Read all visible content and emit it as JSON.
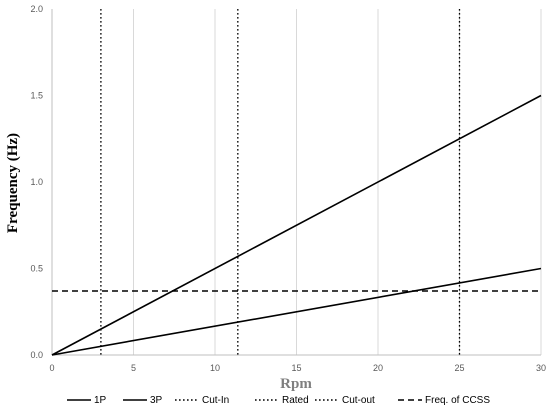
{
  "chart_data": {
    "type": "line",
    "xlabel": "Rpm",
    "ylabel": "Frequency (Hz)",
    "xlim": [
      0,
      30
    ],
    "ylim": [
      0,
      2.0
    ],
    "xticks": [
      "0",
      "5",
      "10",
      "15",
      "20",
      "25",
      "30"
    ],
    "yticks": [
      "0.0",
      "0.5",
      "1.0",
      "1.5",
      "2.0"
    ],
    "grid": "vertical",
    "legend_position": "bottom",
    "series": [
      {
        "name": "1P",
        "style": "solid",
        "points": [
          [
            0,
            0
          ],
          [
            30,
            0.5
          ]
        ]
      },
      {
        "name": "3P",
        "style": "solid",
        "points": [
          [
            0,
            0
          ],
          [
            30,
            1.5
          ]
        ]
      }
    ],
    "vertical_lines": [
      {
        "name": "Cut-In",
        "style": "dotted",
        "x": 3
      },
      {
        "name": "Rated",
        "style": "dotted",
        "x": 11.4
      },
      {
        "name": "Cut-out",
        "style": "dotted",
        "x": 25
      }
    ],
    "horizontal_lines": [
      {
        "name": "Freq. of CCSS",
        "style": "dashed",
        "y": 0.37
      }
    ]
  }
}
